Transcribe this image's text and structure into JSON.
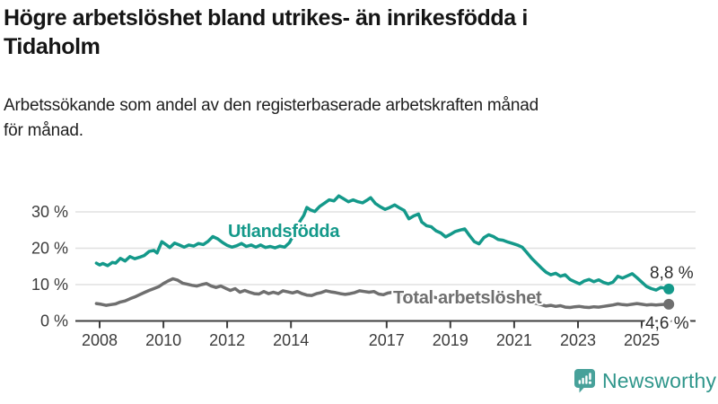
{
  "header": {
    "title_lines": [
      "Högre arbetslöshet bland utrikes- än inrikesfödda i",
      "Tidaholm"
    ],
    "subtitle_lines": [
      "Arbetssökande som andel av den registerbaserade arbetskraften månad",
      "för månad."
    ]
  },
  "footer": {
    "brand": "Newsworthy",
    "wordmark_color": "#2f968b",
    "icon_color": "#47a19a"
  },
  "colors": {
    "accent_teal": "#14998a",
    "series_gray": "#6f6f6f",
    "grid": "#e0e0e0",
    "axis": "#3d3d3d",
    "tick_label": "#3c3c3c",
    "value_label": "#2e2e2e",
    "background": "#ffffff"
  },
  "chart_data": {
    "type": "line",
    "title": "Högre arbetslöshet bland utrikes- än inrikesfödda i Tidaholm",
    "subtitle": "Arbetssökande som andel av den registerbaserade arbetskraften månad för månad.",
    "unit": "%",
    "grid": true,
    "legend_position": "inline-labels",
    "x_range": [
      2007.2,
      2026.7
    ],
    "y_range": [
      0,
      36
    ],
    "x_ticks": [
      [
        2008,
        "2008"
      ],
      [
        2010,
        "2010"
      ],
      [
        2012,
        "2012"
      ],
      [
        2014,
        "2014"
      ],
      [
        2017,
        "2017"
      ],
      [
        2019,
        "2019"
      ],
      [
        2021,
        "2021"
      ],
      [
        2023,
        "2023"
      ],
      [
        2025,
        "2025"
      ]
    ],
    "y_ticks": [
      [
        0,
        "0 %"
      ],
      [
        10,
        "10 %"
      ],
      [
        20,
        "20 %"
      ],
      [
        30,
        "30 %"
      ]
    ],
    "series": [
      {
        "name": "Utlandsfödda",
        "color": "#14998a",
        "end_label": "8,8 %",
        "end_value": 8.8,
        "points": [
          [
            2007.9,
            15.9
          ],
          [
            2008.0,
            15.4
          ],
          [
            2008.1,
            15.8
          ],
          [
            2008.25,
            15.2
          ],
          [
            2008.4,
            16.1
          ],
          [
            2008.5,
            15.9
          ],
          [
            2008.65,
            17.2
          ],
          [
            2008.8,
            16.5
          ],
          [
            2008.95,
            17.7
          ],
          [
            2009.1,
            17.1
          ],
          [
            2009.25,
            17.5
          ],
          [
            2009.4,
            18.0
          ],
          [
            2009.55,
            19.1
          ],
          [
            2009.7,
            19.4
          ],
          [
            2009.8,
            18.7
          ],
          [
            2009.95,
            21.8
          ],
          [
            2010.1,
            20.9
          ],
          [
            2010.2,
            20.2
          ],
          [
            2010.35,
            21.4
          ],
          [
            2010.5,
            20.9
          ],
          [
            2010.65,
            20.3
          ],
          [
            2010.8,
            20.9
          ],
          [
            2010.95,
            20.6
          ],
          [
            2011.1,
            21.3
          ],
          [
            2011.25,
            21.0
          ],
          [
            2011.4,
            21.9
          ],
          [
            2011.55,
            23.2
          ],
          [
            2011.7,
            22.6
          ],
          [
            2011.85,
            21.6
          ],
          [
            2012.0,
            20.8
          ],
          [
            2012.15,
            20.3
          ],
          [
            2012.3,
            20.7
          ],
          [
            2012.45,
            21.3
          ],
          [
            2012.6,
            20.5
          ],
          [
            2012.75,
            20.9
          ],
          [
            2012.9,
            20.3
          ],
          [
            2013.05,
            20.9
          ],
          [
            2013.2,
            20.2
          ],
          [
            2013.35,
            20.5
          ],
          [
            2013.5,
            20.1
          ],
          [
            2013.65,
            20.6
          ],
          [
            2013.8,
            20.3
          ],
          [
            2013.95,
            21.5
          ],
          [
            2014.1,
            24.0
          ],
          [
            2014.25,
            27.0
          ],
          [
            2014.4,
            29.0
          ],
          [
            2014.5,
            31.2
          ],
          [
            2014.6,
            30.6
          ],
          [
            2014.75,
            30.1
          ],
          [
            2014.9,
            31.5
          ],
          [
            2015.05,
            32.4
          ],
          [
            2015.2,
            33.3
          ],
          [
            2015.35,
            33.0
          ],
          [
            2015.5,
            34.4
          ],
          [
            2015.65,
            33.6
          ],
          [
            2015.8,
            32.8
          ],
          [
            2015.95,
            33.3
          ],
          [
            2016.1,
            32.8
          ],
          [
            2016.25,
            32.5
          ],
          [
            2016.4,
            33.3
          ],
          [
            2016.5,
            33.9
          ],
          [
            2016.65,
            32.3
          ],
          [
            2016.8,
            31.4
          ],
          [
            2016.95,
            30.7
          ],
          [
            2017.1,
            31.2
          ],
          [
            2017.25,
            31.9
          ],
          [
            2017.4,
            31.1
          ],
          [
            2017.55,
            30.4
          ],
          [
            2017.7,
            28.1
          ],
          [
            2017.85,
            28.9
          ],
          [
            2018.0,
            29.4
          ],
          [
            2018.1,
            27.2
          ],
          [
            2018.25,
            26.2
          ],
          [
            2018.4,
            25.9
          ],
          [
            2018.55,
            24.8
          ],
          [
            2018.7,
            24.2
          ],
          [
            2018.85,
            23.1
          ],
          [
            2019.0,
            23.8
          ],
          [
            2019.15,
            24.6
          ],
          [
            2019.3,
            25.0
          ],
          [
            2019.45,
            25.3
          ],
          [
            2019.6,
            23.5
          ],
          [
            2019.75,
            21.8
          ],
          [
            2019.9,
            21.2
          ],
          [
            2020.05,
            22.9
          ],
          [
            2020.2,
            23.7
          ],
          [
            2020.35,
            23.2
          ],
          [
            2020.5,
            22.4
          ],
          [
            2020.65,
            22.2
          ],
          [
            2020.8,
            21.7
          ],
          [
            2020.95,
            21.3
          ],
          [
            2021.1,
            20.9
          ],
          [
            2021.25,
            20.3
          ],
          [
            2021.4,
            18.8
          ],
          [
            2021.55,
            17.2
          ],
          [
            2021.7,
            15.9
          ],
          [
            2021.85,
            14.6
          ],
          [
            2022.0,
            13.4
          ],
          [
            2022.15,
            12.7
          ],
          [
            2022.3,
            13.1
          ],
          [
            2022.45,
            12.3
          ],
          [
            2022.6,
            12.7
          ],
          [
            2022.75,
            11.4
          ],
          [
            2022.9,
            10.8
          ],
          [
            2023.05,
            10.2
          ],
          [
            2023.2,
            11.0
          ],
          [
            2023.35,
            11.4
          ],
          [
            2023.5,
            10.8
          ],
          [
            2023.65,
            11.3
          ],
          [
            2023.8,
            10.6
          ],
          [
            2023.95,
            10.2
          ],
          [
            2024.1,
            10.7
          ],
          [
            2024.25,
            12.3
          ],
          [
            2024.4,
            11.8
          ],
          [
            2024.55,
            12.4
          ],
          [
            2024.7,
            13.0
          ],
          [
            2024.85,
            11.9
          ],
          [
            2025.0,
            10.7
          ],
          [
            2025.15,
            9.5
          ],
          [
            2025.3,
            8.9
          ],
          [
            2025.45,
            8.5
          ],
          [
            2025.6,
            9.2
          ],
          [
            2025.85,
            8.8
          ]
        ]
      },
      {
        "name": "Total arbetslöshet",
        "color": "#6f6f6f",
        "end_label": "4,6 %",
        "end_value": 4.6,
        "points": [
          [
            2007.9,
            4.8
          ],
          [
            2008.05,
            4.6
          ],
          [
            2008.2,
            4.3
          ],
          [
            2008.35,
            4.5
          ],
          [
            2008.5,
            4.7
          ],
          [
            2008.65,
            5.2
          ],
          [
            2008.8,
            5.5
          ],
          [
            2008.95,
            6.1
          ],
          [
            2009.1,
            6.6
          ],
          [
            2009.25,
            7.2
          ],
          [
            2009.4,
            7.8
          ],
          [
            2009.55,
            8.4
          ],
          [
            2009.7,
            8.9
          ],
          [
            2009.85,
            9.4
          ],
          [
            2010.0,
            10.3
          ],
          [
            2010.15,
            11.0
          ],
          [
            2010.3,
            11.6
          ],
          [
            2010.45,
            11.2
          ],
          [
            2010.6,
            10.4
          ],
          [
            2010.75,
            10.1
          ],
          [
            2010.9,
            9.8
          ],
          [
            2011.05,
            9.6
          ],
          [
            2011.2,
            10.0
          ],
          [
            2011.35,
            10.3
          ],
          [
            2011.5,
            9.6
          ],
          [
            2011.65,
            9.2
          ],
          [
            2011.8,
            9.6
          ],
          [
            2011.95,
            9.0
          ],
          [
            2012.1,
            8.4
          ],
          [
            2012.25,
            8.9
          ],
          [
            2012.4,
            7.9
          ],
          [
            2012.55,
            8.4
          ],
          [
            2012.7,
            7.9
          ],
          [
            2012.85,
            7.5
          ],
          [
            2013.0,
            7.4
          ],
          [
            2013.15,
            8.1
          ],
          [
            2013.3,
            7.5
          ],
          [
            2013.45,
            7.9
          ],
          [
            2013.6,
            7.5
          ],
          [
            2013.75,
            8.3
          ],
          [
            2013.9,
            8.0
          ],
          [
            2014.05,
            7.7
          ],
          [
            2014.2,
            8.1
          ],
          [
            2014.35,
            7.5
          ],
          [
            2014.5,
            7.1
          ],
          [
            2014.65,
            7.0
          ],
          [
            2014.8,
            7.5
          ],
          [
            2014.95,
            7.8
          ],
          [
            2015.1,
            8.3
          ],
          [
            2015.25,
            8.0
          ],
          [
            2015.4,
            7.8
          ],
          [
            2015.55,
            7.5
          ],
          [
            2015.7,
            7.3
          ],
          [
            2015.85,
            7.5
          ],
          [
            2016.0,
            7.8
          ],
          [
            2016.15,
            8.3
          ],
          [
            2016.3,
            8.1
          ],
          [
            2016.45,
            7.9
          ],
          [
            2016.6,
            8.1
          ],
          [
            2016.75,
            7.4
          ],
          [
            2016.9,
            7.2
          ],
          [
            2017.05,
            7.7
          ],
          [
            2017.2,
            7.9
          ],
          [
            2017.35,
            7.4
          ],
          [
            2017.5,
            7.1
          ],
          [
            2017.65,
            6.8
          ],
          [
            2017.8,
            6.6
          ],
          [
            2017.95,
            7.0
          ],
          [
            2018.1,
            7.3
          ],
          [
            2018.25,
            6.9
          ],
          [
            2018.4,
            6.7
          ],
          [
            2018.55,
            6.4
          ],
          [
            2018.7,
            6.3
          ],
          [
            2018.85,
            6.6
          ],
          [
            2019.0,
            6.8
          ],
          [
            2019.15,
            7.0
          ],
          [
            2019.3,
            6.7
          ],
          [
            2019.45,
            6.5
          ],
          [
            2019.6,
            6.3
          ],
          [
            2019.75,
            6.4
          ],
          [
            2019.9,
            6.6
          ],
          [
            2020.05,
            6.9
          ],
          [
            2020.2,
            7.2
          ],
          [
            2020.35,
            7.0
          ],
          [
            2020.5,
            6.8
          ],
          [
            2020.65,
            6.7
          ],
          [
            2020.8,
            6.5
          ],
          [
            2020.95,
            6.3
          ],
          [
            2021.1,
            6.0
          ],
          [
            2021.25,
            5.7
          ],
          [
            2021.4,
            5.4
          ],
          [
            2021.55,
            5.1
          ],
          [
            2021.7,
            4.8
          ],
          [
            2021.85,
            4.5
          ],
          [
            2022.0,
            4.1
          ],
          [
            2022.15,
            4.3
          ],
          [
            2022.3,
            4.0
          ],
          [
            2022.45,
            4.2
          ],
          [
            2022.6,
            3.8
          ],
          [
            2022.75,
            3.7
          ],
          [
            2022.9,
            3.9
          ],
          [
            2023.05,
            4.0
          ],
          [
            2023.2,
            3.8
          ],
          [
            2023.35,
            3.7
          ],
          [
            2023.5,
            3.9
          ],
          [
            2023.65,
            3.8
          ],
          [
            2023.8,
            4.0
          ],
          [
            2023.95,
            4.2
          ],
          [
            2024.1,
            4.4
          ],
          [
            2024.25,
            4.7
          ],
          [
            2024.4,
            4.5
          ],
          [
            2024.55,
            4.4
          ],
          [
            2024.7,
            4.6
          ],
          [
            2024.85,
            4.8
          ],
          [
            2025.0,
            4.6
          ],
          [
            2025.15,
            4.4
          ],
          [
            2025.3,
            4.5
          ],
          [
            2025.45,
            4.4
          ],
          [
            2025.6,
            4.5
          ],
          [
            2025.85,
            4.6
          ]
        ]
      }
    ]
  }
}
